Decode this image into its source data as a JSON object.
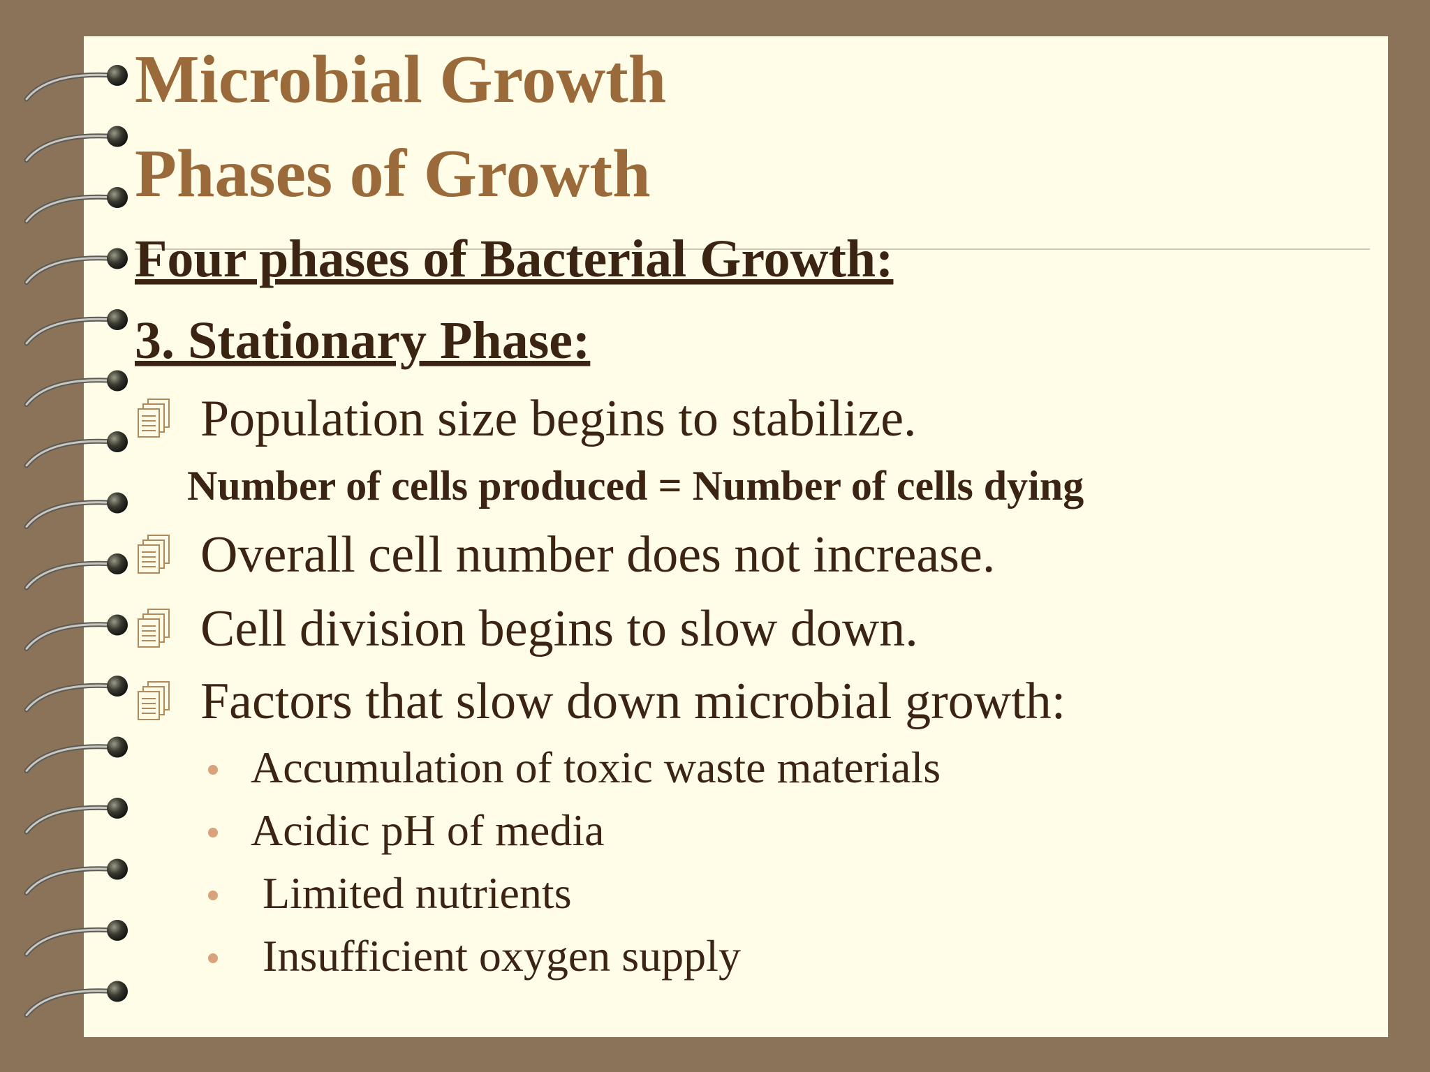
{
  "slide": {
    "title": "Microbial Growth",
    "subtitle": "Phases of Growth",
    "heading": "Four phases of Bacterial Growth:",
    "subheading": "3. Stationary Phase:",
    "points": [
      "Population size begins to stabilize.",
      "Overall cell number does not increase.",
      "Cell division begins to slow down.",
      "Factors that slow down microbial growth:"
    ],
    "note": "Number of cells produced = Number of cells dying",
    "factors": [
      "Accumulation of toxic waste materials",
      "Acidic pH of media",
      "Limited nutrients",
      "Insufficient oxygen supply"
    ]
  }
}
